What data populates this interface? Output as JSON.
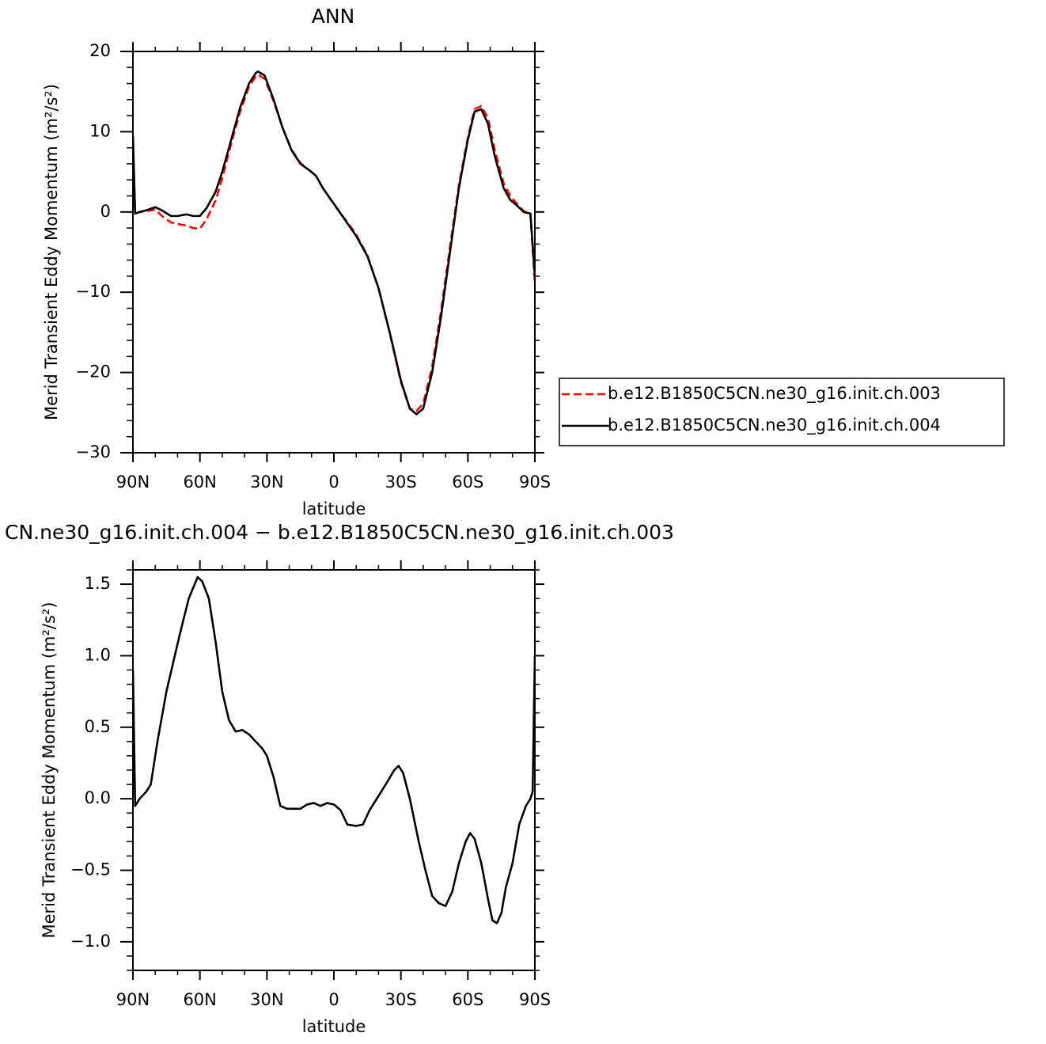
{
  "chart_data": [
    {
      "type": "line",
      "title": "ANN",
      "xlabel": "latitude",
      "ylabel": "Merid Transient Eddy Momentum (m²/s²)",
      "x": [
        90,
        89,
        87,
        84,
        80,
        77,
        73,
        70,
        66,
        63,
        60,
        57,
        53,
        50,
        46,
        42,
        38,
        35,
        34,
        31,
        27,
        23,
        19,
        15,
        11,
        8,
        5,
        0,
        -5,
        -10,
        -15,
        -20,
        -25,
        -30,
        -34,
        -37,
        -40,
        -44,
        -48,
        -52,
        -56,
        -60,
        -63,
        -66,
        -69,
        -72,
        -76,
        -79,
        -82,
        -85,
        -88,
        -90
      ],
      "series": [
        {
          "name": "b.e12.B1850C5CN.ne30_g16.init.ch.003",
          "color": "#ff0000",
          "dash": true,
          "values": [
            8.6,
            -0.2,
            0,
            0.1,
            0.3,
            -0.5,
            -1.3,
            -1.5,
            -1.7,
            -2,
            -2.1,
            -0.9,
            1.4,
            4.2,
            8.5,
            12.5,
            15.6,
            16.9,
            17.1,
            16.6,
            13.8,
            10.5,
            7.8,
            6.1,
            5.2,
            4.5,
            3,
            1,
            -0.9,
            -2.8,
            -5.4,
            -9.5,
            -15.1,
            -21.2,
            -24.5,
            -24.8,
            -23.9,
            -19.3,
            -12.3,
            -4.3,
            3.4,
            9.3,
            12.8,
            13.2,
            11.7,
            7.8,
            3.6,
            2,
            1,
            0.1,
            -0.2,
            -9
          ]
        },
        {
          "name": "b.e12.B1850C5CN.ne30_g16.init.ch.004",
          "color": "#000000",
          "dash": false,
          "values": [
            9.5,
            -0.2,
            0,
            0.2,
            0.6,
            0.2,
            -0.5,
            -0.5,
            -0.3,
            -0.5,
            -0.5,
            0.5,
            2.5,
            5,
            9,
            13,
            16,
            17.3,
            17.5,
            17,
            14,
            10.5,
            7.7,
            6,
            5.2,
            4.5,
            3,
            1,
            -1,
            -3,
            -5.5,
            -9.5,
            -15,
            -21,
            -24.5,
            -25.2,
            -24.5,
            -20,
            -13,
            -5,
            3,
            9,
            12.5,
            12.8,
            11,
            7,
            3,
            1.5,
            0.8,
            0,
            -0.2,
            -8
          ]
        }
      ],
      "xlim": [
        90,
        -90
      ],
      "xticks": [
        {
          "value": 90,
          "label": "90N"
        },
        {
          "value": 60,
          "label": "60N"
        },
        {
          "value": 30,
          "label": "30N"
        },
        0,
        {
          "value": -30,
          "label": "30S"
        },
        {
          "value": -60,
          "label": "60S"
        },
        {
          "value": -90,
          "label": "90S"
        }
      ],
      "ylim": [
        -30,
        20
      ],
      "yticks": [
        {
          "value": -30,
          "label": "−30"
        },
        {
          "value": -20,
          "label": "−20"
        },
        {
          "value": -10,
          "label": "−10"
        },
        0,
        10,
        20
      ],
      "legend": "right"
    },
    {
      "type": "line",
      "title": "CN.ne30_g16.init.ch.004 − b.e12.B1850C5CN.ne30_g16.init.ch.003",
      "xlabel": "latitude",
      "ylabel": "Merid Transient Eddy Momentum (m²/s²)",
      "x": [
        90,
        89,
        87,
        84,
        82,
        79,
        75,
        72,
        69,
        65,
        61,
        59,
        56,
        53,
        50,
        47,
        44,
        41,
        38,
        35,
        32,
        30,
        27,
        24,
        21,
        18,
        15,
        12,
        9,
        6,
        3,
        0,
        -3,
        -6,
        -10,
        -13,
        -16,
        -20,
        -24,
        -27,
        -29,
        -31,
        -34,
        -38,
        -41,
        -44,
        -47,
        -50,
        -53,
        -56,
        -59,
        -61,
        -63,
        -66,
        -69,
        -71,
        -73,
        -75,
        -77,
        -80,
        -83,
        -86,
        -88,
        -89,
        -90
      ],
      "series": [
        {
          "color": "#000000",
          "dash": false,
          "values": [
            0.9,
            -0.05,
            0,
            0.05,
            0.1,
            0.4,
            0.75,
            0.95,
            1.15,
            1.4,
            1.55,
            1.52,
            1.4,
            1.1,
            0.75,
            0.55,
            0.47,
            0.48,
            0.45,
            0.4,
            0.35,
            0.3,
            0.15,
            -0.05,
            -0.07,
            -0.07,
            -0.07,
            -0.04,
            -0.03,
            -0.05,
            -0.03,
            -0.04,
            -0.08,
            -0.18,
            -0.19,
            -0.18,
            -0.08,
            0.02,
            0.12,
            0.2,
            0.23,
            0.18,
            0,
            -0.3,
            -0.5,
            -0.68,
            -0.73,
            -0.75,
            -0.65,
            -0.45,
            -0.3,
            -0.24,
            -0.28,
            -0.45,
            -0.7,
            -0.85,
            -0.87,
            -0.8,
            -0.62,
            -0.45,
            -0.18,
            -0.05,
            0,
            0.05,
            1
          ]
        }
      ],
      "xlim": [
        90,
        -90
      ],
      "xticks": [
        {
          "value": 90,
          "label": "90N"
        },
        {
          "value": 60,
          "label": "60N"
        },
        {
          "value": 30,
          "label": "30N"
        },
        0,
        {
          "value": -30,
          "label": "30S"
        },
        {
          "value": -60,
          "label": "60S"
        },
        {
          "value": -90,
          "label": "90S"
        }
      ],
      "ylim": [
        -1.2,
        1.6
      ],
      "yticks": [
        {
          "value": -1.0,
          "label": "−1.0"
        },
        {
          "value": -0.5,
          "label": "−0.5"
        },
        {
          "value": 0.0,
          "label": "0.0"
        },
        0.5,
        {
          "value": 1.0,
          "label": "1.0"
        },
        1.5
      ]
    }
  ]
}
